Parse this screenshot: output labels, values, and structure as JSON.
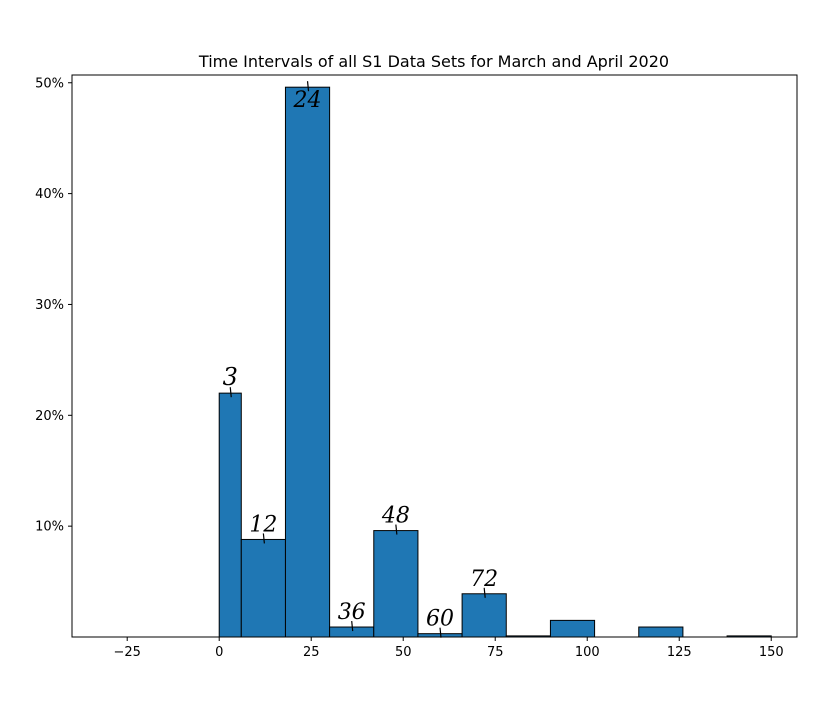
{
  "chart_data": {
    "type": "bar",
    "title": "Time Intervals of all S1 Data Sets for March and April 2020",
    "xlabel": "",
    "ylabel": "",
    "xlim": [
      -40,
      157
    ],
    "ylim": [
      0,
      50.7
    ],
    "xticks": [
      -25,
      0,
      25,
      50,
      75,
      100,
      125,
      150
    ],
    "xtick_labels": [
      "−25",
      "0",
      "25",
      "50",
      "75",
      "100",
      "125",
      "150"
    ],
    "yticks": [
      10,
      20,
      30,
      40,
      50
    ],
    "ytick_labels": [
      "10%",
      "20%",
      "30%",
      "40%",
      "50%"
    ],
    "bar_color": "#1f77b4",
    "edge_color": "#000000",
    "bins": [
      {
        "x0": 0,
        "x1": 6,
        "value": 22.0
      },
      {
        "x0": 6,
        "x1": 18,
        "value": 8.8
      },
      {
        "x0": 18,
        "x1": 30,
        "value": 49.6
      },
      {
        "x0": 30,
        "x1": 42,
        "value": 0.9
      },
      {
        "x0": 42,
        "x1": 54,
        "value": 9.6
      },
      {
        "x0": 54,
        "x1": 66,
        "value": 0.3
      },
      {
        "x0": 66,
        "x1": 78,
        "value": 3.9
      },
      {
        "x0": 78,
        "x1": 90,
        "value": 0.1
      },
      {
        "x0": 90,
        "x1": 102,
        "value": 1.5
      },
      {
        "x0": 102,
        "x1": 114,
        "value": 0.0
      },
      {
        "x0": 114,
        "x1": 126,
        "value": 0.9
      },
      {
        "x0": 126,
        "x1": 138,
        "value": 0.0
      },
      {
        "x0": 138,
        "x1": 150,
        "value": 0.1
      }
    ],
    "annotations": [
      {
        "text": "3",
        "x": 3,
        "y": 22.0
      },
      {
        "text": "12",
        "x": 12,
        "y": 8.8
      },
      {
        "text": "24",
        "x": 24,
        "y": 49.6
      },
      {
        "text": "36",
        "x": 36,
        "y": 0.9
      },
      {
        "text": "48",
        "x": 48,
        "y": 9.6
      },
      {
        "text": "60",
        "x": 60,
        "y": 0.3
      },
      {
        "text": "72",
        "x": 72,
        "y": 3.9
      }
    ]
  }
}
